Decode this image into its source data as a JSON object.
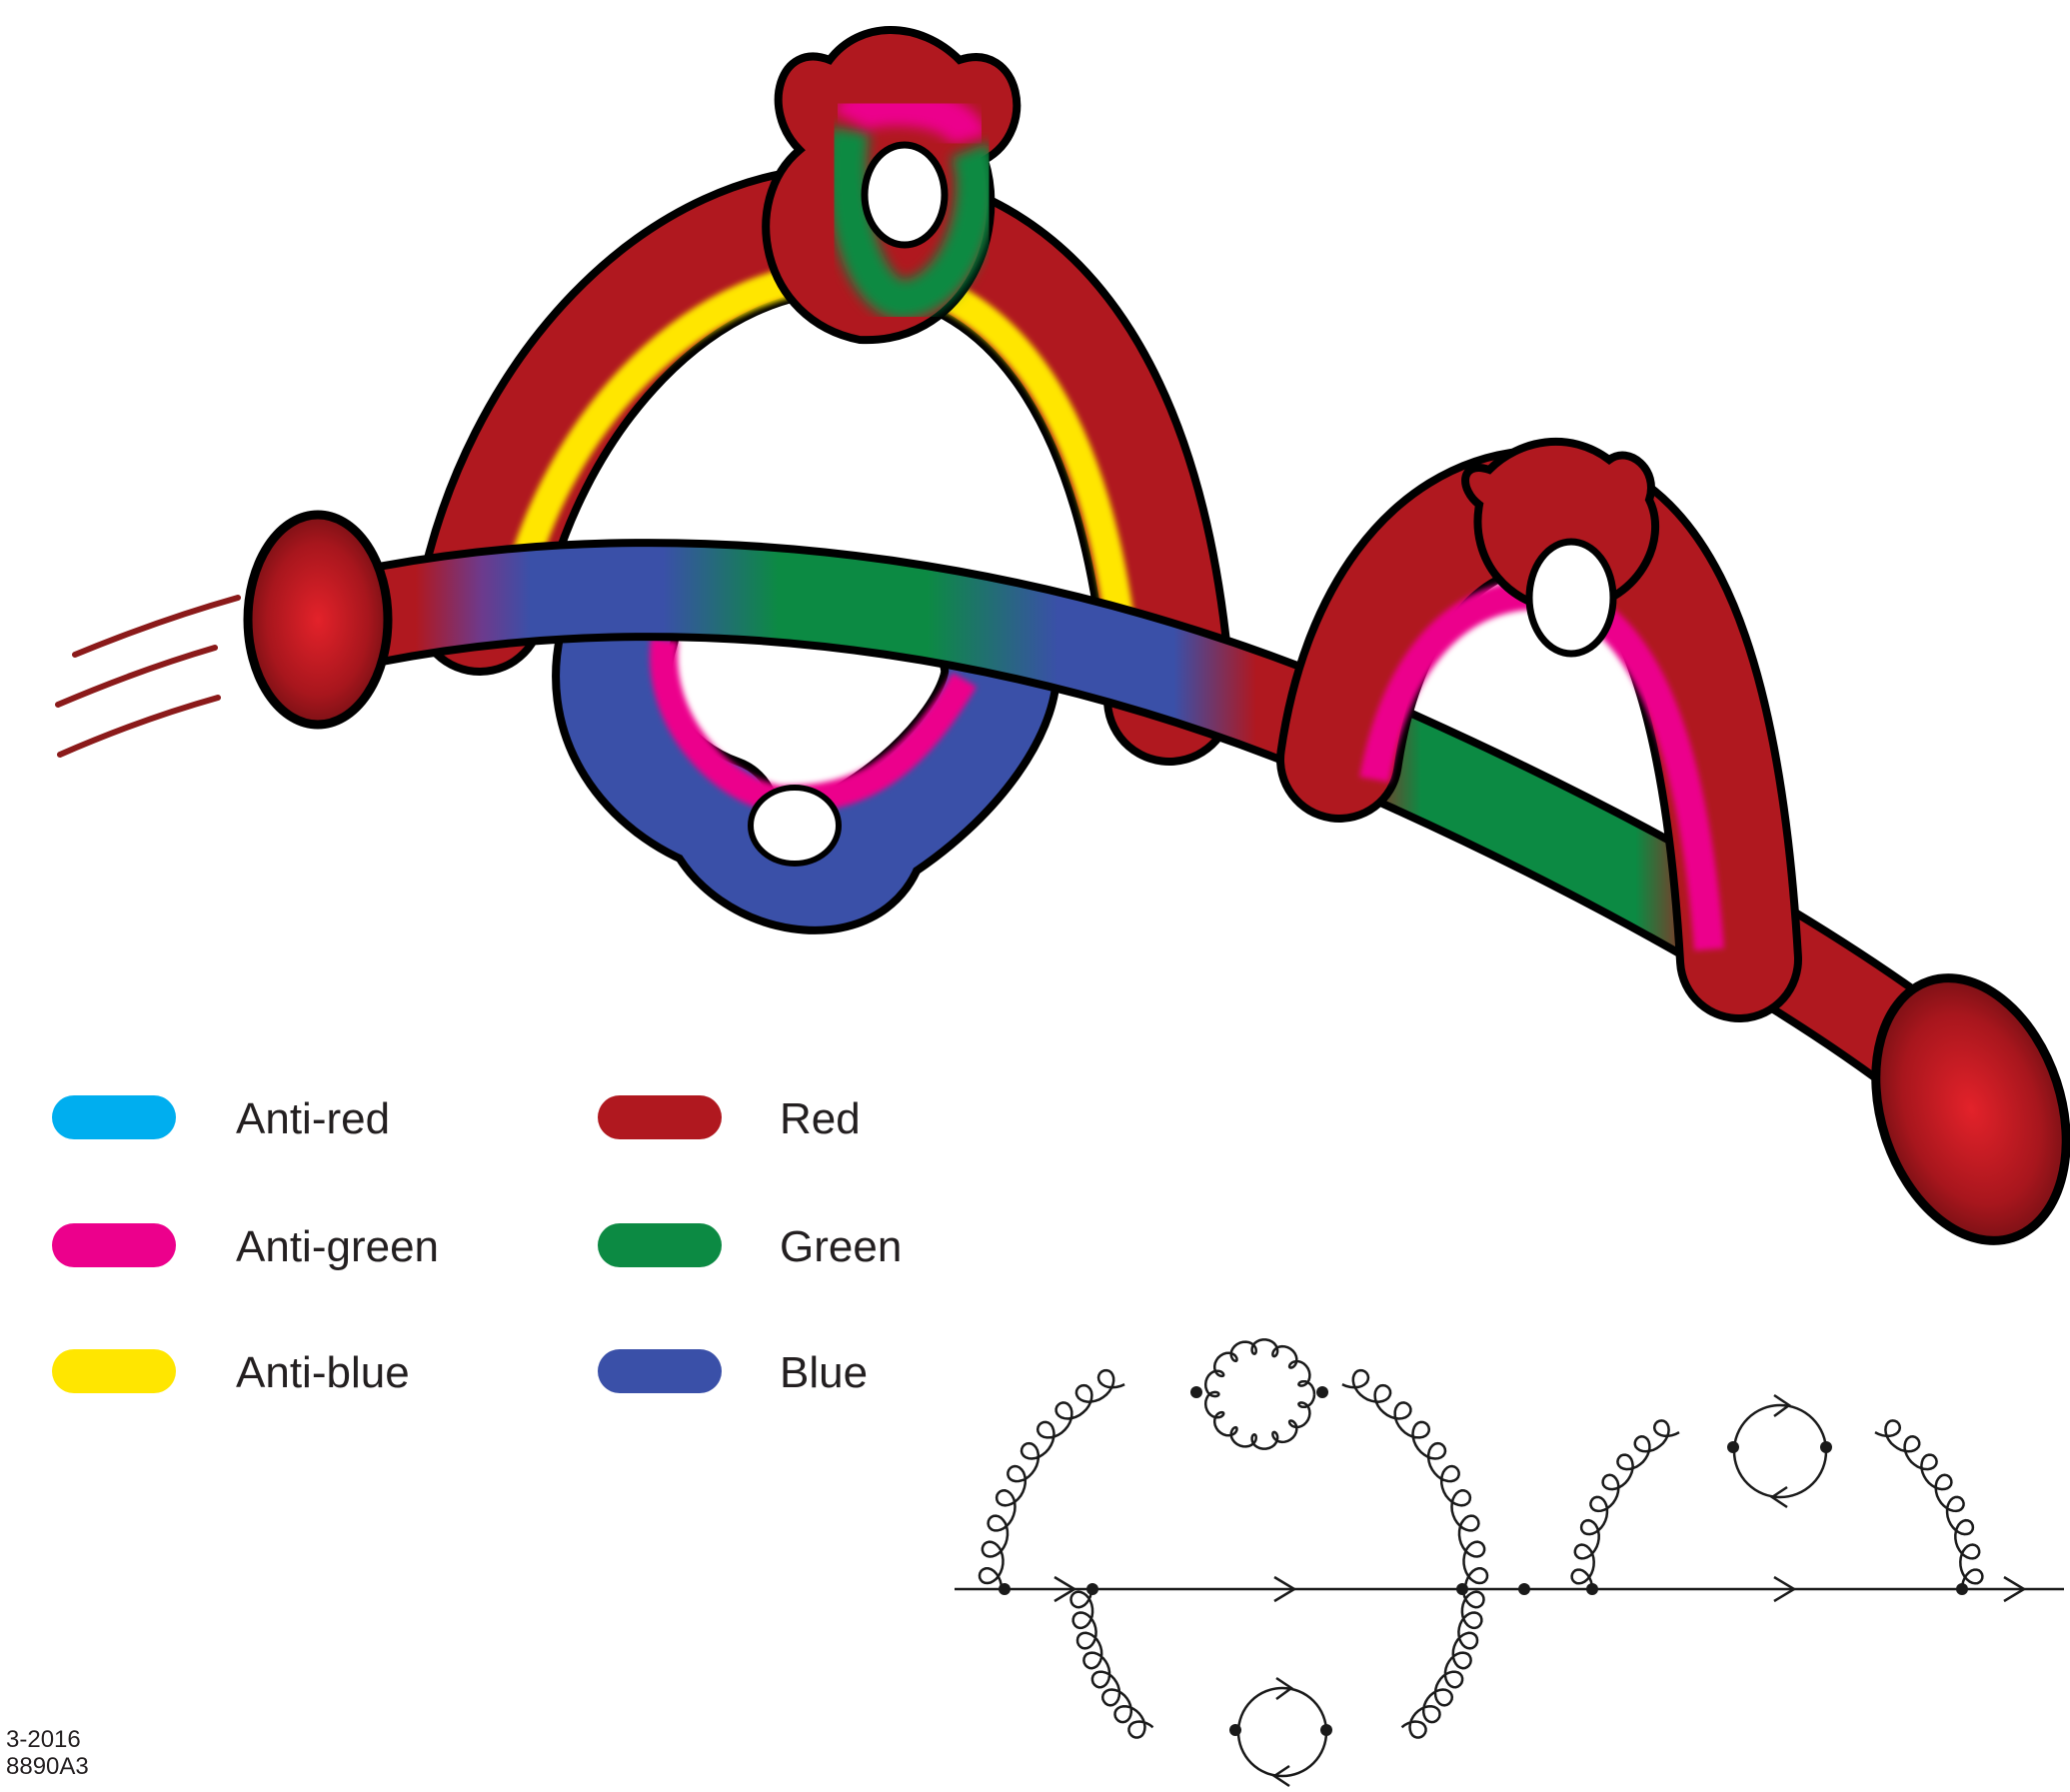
{
  "colors": {
    "anti_red": "#00aeef",
    "anti_green": "#ec008c",
    "anti_blue": "#ffe600",
    "red": "#b0181f",
    "green": "#0c8a43",
    "blue": "#3a50a8",
    "outline": "#000000",
    "motion_lines": "#8b1a1a"
  },
  "legend": [
    {
      "label": "Anti-red",
      "swatch_color": "#00aeef"
    },
    {
      "label": "Red",
      "swatch_color": "#b0181f"
    },
    {
      "label": "Anti-green",
      "swatch_color": "#ec008c"
    },
    {
      "label": "Green",
      "swatch_color": "#0c8a43"
    },
    {
      "label": "Anti-blue",
      "swatch_color": "#ffe600"
    },
    {
      "label": "Blue",
      "swatch_color": "#3a50a8"
    }
  ],
  "figure_ref": {
    "line1": "3-2016",
    "line2": "8890A3"
  }
}
